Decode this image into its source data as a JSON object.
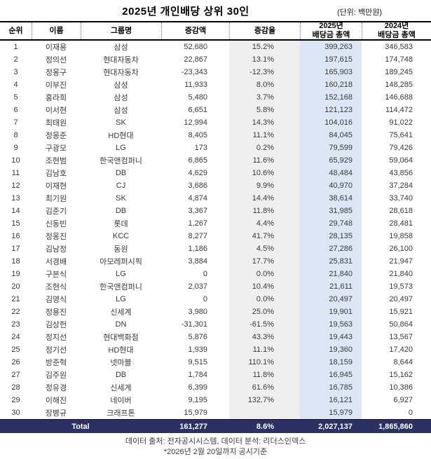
{
  "chart_data": {
    "type": "table",
    "title": "2025년 개인배당 상위 30인",
    "unit_note": "(단위: 백만원)",
    "columns": [
      {
        "key": "rank",
        "label": "순위"
      },
      {
        "key": "name",
        "label": "이름"
      },
      {
        "key": "group",
        "label": "그룹명"
      },
      {
        "key": "change_amount",
        "label": "증감액"
      },
      {
        "key": "change_rate",
        "label": "증감율"
      },
      {
        "key": "total_2025",
        "label": "2025년\n배당금 총액"
      },
      {
        "key": "total_2024",
        "label": "2024년\n배당금 총액"
      }
    ],
    "rows": [
      [
        "1",
        "이재용",
        "삼성",
        "52,680",
        "15.2%",
        "399,263",
        "346,583"
      ],
      [
        "2",
        "정의선",
        "현대자동차",
        "22,867",
        "13.1%",
        "197,615",
        "174,748"
      ],
      [
        "3",
        "정몽구",
        "현대자동차",
        "-23,343",
        "-12.3%",
        "165,903",
        "189,245"
      ],
      [
        "4",
        "이부진",
        "삼성",
        "11,933",
        "8.0%",
        "160,218",
        "148,285"
      ],
      [
        "5",
        "홍라희",
        "삼성",
        "5,480",
        "3.7%",
        "152,168",
        "146,688"
      ],
      [
        "6",
        "이서현",
        "삼성",
        "6,651",
        "5.8%",
        "121,123",
        "114,472"
      ],
      [
        "7",
        "최태원",
        "SK",
        "12,994",
        "14.3%",
        "104,016",
        "91,022"
      ],
      [
        "8",
        "정몽준",
        "HD현대",
        "8,405",
        "11.1%",
        "84,045",
        "75,641"
      ],
      [
        "9",
        "구광모",
        "LG",
        "173",
        "0.2%",
        "79,599",
        "79,426"
      ],
      [
        "10",
        "조현범",
        "한국앤컴퍼니",
        "6,865",
        "11.6%",
        "65,929",
        "59,064"
      ],
      [
        "11",
        "김남호",
        "DB",
        "4,629",
        "10.6%",
        "48,484",
        "43,856"
      ],
      [
        "12",
        "이재현",
        "CJ",
        "3,686",
        "9.9%",
        "40,970",
        "37,284"
      ],
      [
        "13",
        "최기원",
        "SK",
        "4,874",
        "14.4%",
        "38,614",
        "33,740"
      ],
      [
        "14",
        "김준기",
        "DB",
        "3,367",
        "11.8%",
        "31,985",
        "28,618"
      ],
      [
        "15",
        "신동빈",
        "롯데",
        "1,267",
        "4.4%",
        "29,748",
        "28,481"
      ],
      [
        "16",
        "정몽진",
        "KCC",
        "8,277",
        "41.7%",
        "28,135",
        "19,858"
      ],
      [
        "17",
        "김남정",
        "동원",
        "1,186",
        "4.5%",
        "27,286",
        "26,100"
      ],
      [
        "18",
        "서경배",
        "아모레퍼시픽",
        "3,884",
        "17.7%",
        "25,831",
        "21,947"
      ],
      [
        "19",
        "구본식",
        "LG",
        "0",
        "0.0%",
        "21,840",
        "21,840"
      ],
      [
        "20",
        "조현식",
        "한국앤컴퍼니",
        "2,037",
        "10.4%",
        "21,611",
        "19,573"
      ],
      [
        "21",
        "김영식",
        "LG",
        "0",
        "0.0%",
        "20,497",
        "20,497"
      ],
      [
        "22",
        "정용진",
        "신세계",
        "3,980",
        "25.0%",
        "19,901",
        "15,921"
      ],
      [
        "23",
        "김상헌",
        "DN",
        "-31,301",
        "-61.5%",
        "19,563",
        "50,864"
      ],
      [
        "24",
        "정지선",
        "현대백화점",
        "5,876",
        "43.3%",
        "19,443",
        "13,567"
      ],
      [
        "25",
        "정기선",
        "HD현대",
        "1,939",
        "11.1%",
        "19,360",
        "17,420"
      ],
      [
        "26",
        "방준혁",
        "넷마블",
        "9,515",
        "110.1%",
        "18,159",
        "8,644"
      ],
      [
        "27",
        "김주원",
        "DB",
        "1,784",
        "11.8%",
        "16,945",
        "15,162"
      ],
      [
        "28",
        "정유경",
        "신세계",
        "6,399",
        "61.6%",
        "16,785",
        "10,386"
      ],
      [
        "29",
        "이해진",
        "네이버",
        "9,195",
        "132.7%",
        "16,121",
        "6,927"
      ],
      [
        "30",
        "장병규",
        "크래프톤",
        "15,979",
        "",
        "15,979",
        "0"
      ]
    ],
    "total_row": {
      "label": "Total",
      "change_amount": "161,277",
      "change_rate": "8.6%",
      "total_2025": "2,027,137",
      "total_2024": "1,865,860"
    },
    "source_note": "데이터 출처: 전자공시시스템, 데이터 분석: 리더스인덱스",
    "basis_note": "*2026년 2월 20일까지 공시기준",
    "colors": {
      "change_rate_column_bg": "#efefef",
      "total_2025_column_bg": "#dce6f4",
      "total_row_bg": "#2b3263",
      "text": "#3a3a3a"
    },
    "layout_hints": {
      "shaded_columns": [
        "change_rate",
        "total_2025"
      ],
      "header_separators": "dotted"
    }
  }
}
